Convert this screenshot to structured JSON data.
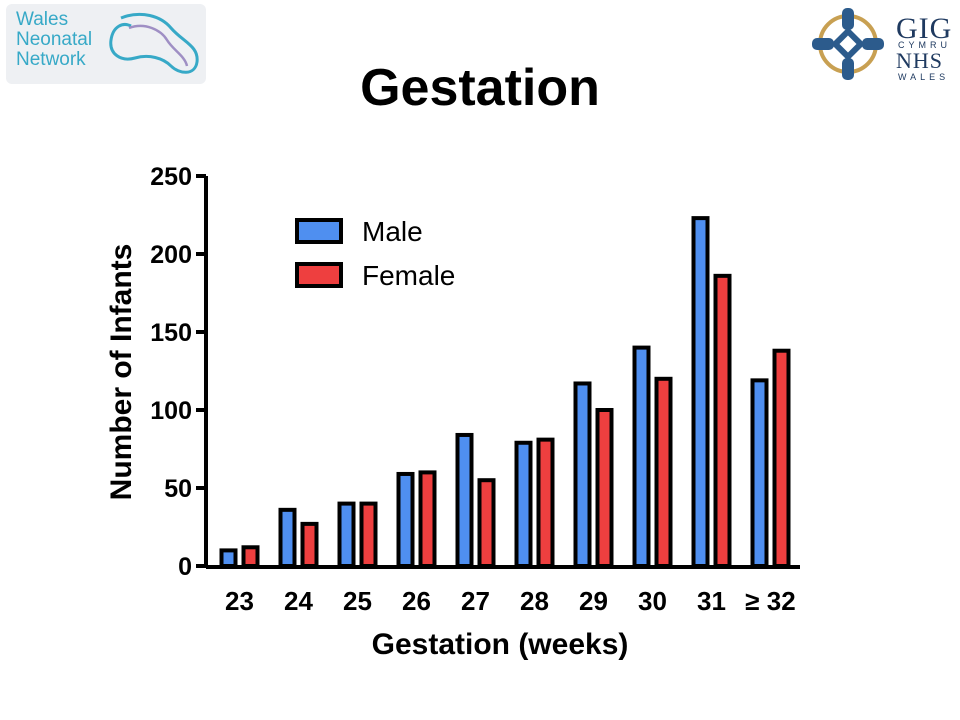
{
  "header": {
    "left_logo_text": [
      "Wales",
      "Neonatal",
      "Network"
    ],
    "right_logo_text": {
      "gig": "GIG",
      "cymru": "CYMRU",
      "nhs": "NHS",
      "wales": "WALES"
    },
    "title": "Gestation"
  },
  "colors": {
    "male": "#4f8ff0",
    "female": "#ee3f3f",
    "outline": "#000000"
  },
  "chart_data": {
    "type": "bar",
    "title": "",
    "xlabel": "Gestation (weeks)",
    "ylabel": "Number of Infants",
    "categories": [
      "23",
      "24",
      "25",
      "26",
      "27",
      "28",
      "29",
      "30",
      "31",
      "≥ 32"
    ],
    "ylim": [
      0,
      250
    ],
    "yticks": [
      0,
      50,
      100,
      150,
      200,
      250
    ],
    "legend_position": "top-left",
    "grid": false,
    "series": [
      {
        "name": "Male",
        "color": "#4f8ff0",
        "values": [
          10,
          36,
          40,
          59,
          84,
          79,
          117,
          140,
          223,
          119
        ]
      },
      {
        "name": "Female",
        "color": "#ee3f3f",
        "values": [
          12,
          27,
          40,
          60,
          55,
          81,
          100,
          120,
          186,
          138
        ]
      }
    ]
  }
}
